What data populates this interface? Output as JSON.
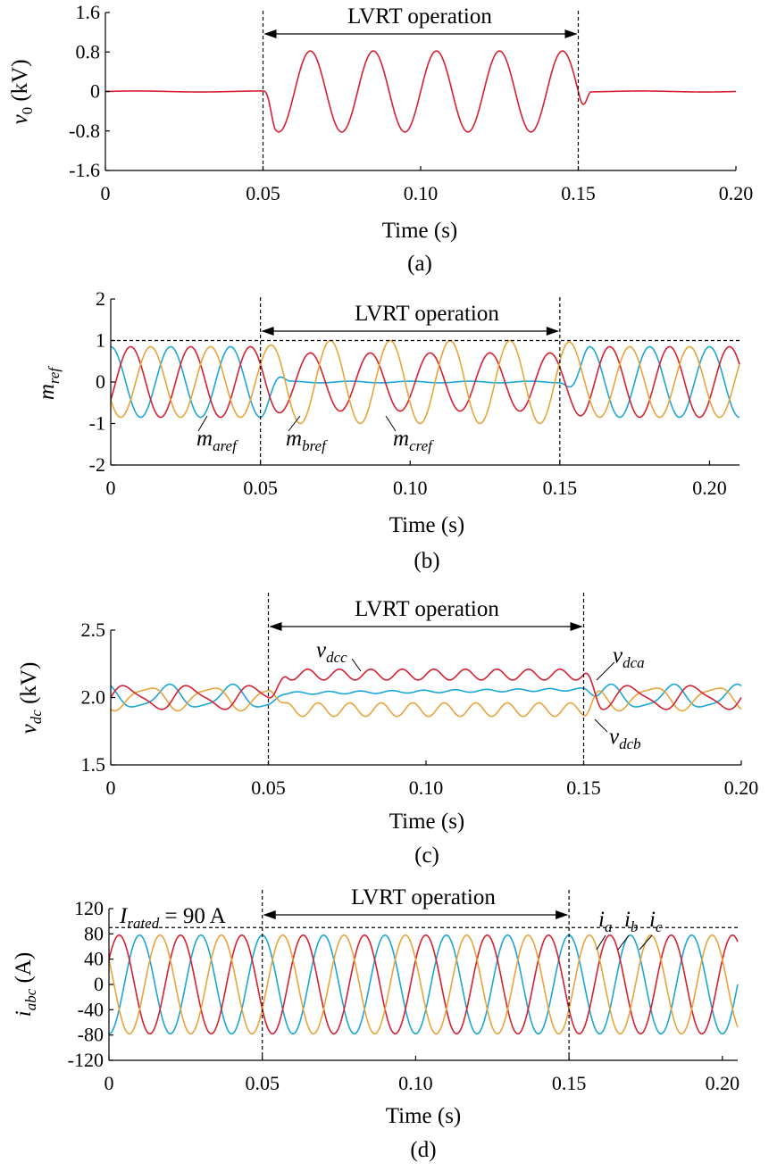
{
  "chart_data": [
    {
      "panel": "a",
      "type": "line",
      "caption": "(a)",
      "xlabel": "Time (s)",
      "ylabel": "v0 (kV)",
      "ylabel_main": "v",
      "ylabel_sub": "0",
      "ylabel_unit": " (kV)",
      "xlim": [
        0,
        0.2
      ],
      "ylim": [
        -1.6,
        1.6
      ],
      "x_ticks": [
        0,
        0.05,
        0.1,
        0.15,
        0.2
      ],
      "x_tick_labels": [
        "0",
        "0.05",
        "0.10",
        "0.15",
        "0.20"
      ],
      "y_ticks": [
        -1.6,
        -0.8,
        0,
        0.8,
        1.6
      ],
      "y_tick_labels": [
        "-1.6",
        "-0.8",
        "0",
        "0.8",
        "1.6"
      ],
      "event_lines_x": [
        0.05,
        0.15
      ],
      "annotation": "LVRT operation",
      "series": [
        {
          "color": "#d62031",
          "frequency_hz": 50,
          "amplitude": 0.82,
          "phase_deg": 180,
          "active_window": [
            0.05,
            0.15
          ],
          "baseline": 0
        }
      ]
    },
    {
      "panel": "b",
      "type": "line",
      "caption": "(b)",
      "xlabel": "Time (s)",
      "ylabel": "mref",
      "ylabel_main": "m",
      "ylabel_sub": "ref",
      "xlim": [
        0,
        0.21
      ],
      "ylim": [
        -2,
        2
      ],
      "x_ticks": [
        0,
        0.05,
        0.1,
        0.15,
        0.2
      ],
      "x_tick_labels": [
        "0",
        "0.05",
        "0.10",
        "0.15",
        "0.20"
      ],
      "y_ticks": [
        -2,
        -1,
        0,
        1,
        2
      ],
      "y_tick_labels": [
        "-2",
        "-1",
        "0",
        "1",
        "2"
      ],
      "event_lines_x": [
        0.05,
        0.15
      ],
      "reference_line_y": 1,
      "annotation": "LVRT operation",
      "series": [
        {
          "label_main": "m",
          "label_sub": "aref",
          "color": "#1aa6d6",
          "frequency_hz": 50,
          "amplitude_normal": 0.85,
          "amplitude_lvrt": 0.02,
          "phase_deg": 90
        },
        {
          "label_main": "m",
          "label_sub": "bref",
          "color": "#d62031",
          "frequency_hz": 50,
          "amplitude_normal": 0.85,
          "amplitude_lvrt": 0.7,
          "phase_deg": -30
        },
        {
          "label_main": "m",
          "label_sub": "cref",
          "color": "#e8a43a",
          "frequency_hz": 50,
          "amplitude_normal": 0.85,
          "amplitude_lvrt": 1.0,
          "phase_deg": 210
        }
      ]
    },
    {
      "panel": "c",
      "type": "line",
      "caption": "(c)",
      "xlabel": "Time (s)",
      "ylabel": "vdc (kV)",
      "ylabel_main": "v",
      "ylabel_sub": "dc",
      "ylabel_unit": " (kV)",
      "xlim": [
        0,
        0.2
      ],
      "ylim": [
        1.5,
        2.5
      ],
      "x_ticks": [
        0,
        0.05,
        0.1,
        0.15,
        0.2
      ],
      "x_tick_labels": [
        "0",
        "0.05",
        "0.10",
        "0.15",
        "0.20"
      ],
      "y_ticks": [
        1.5,
        2.0,
        2.5
      ],
      "y_tick_labels": [
        "1.5",
        "2.0",
        "2.5"
      ],
      "event_lines_x": [
        0.05,
        0.15
      ],
      "annotation": "LVRT operation",
      "series": [
        {
          "label_main": "v",
          "label_sub": "dcc",
          "color": "#d62031",
          "center_lvrt": 2.17,
          "ripple_lvrt": 0.04
        },
        {
          "label_main": "v",
          "label_sub": "dca",
          "color": "#1aa6d6",
          "center_lvrt": 2.03,
          "ripple_lvrt": 0.01
        },
        {
          "label_main": "v",
          "label_sub": "dcb",
          "color": "#e8a43a",
          "center_lvrt": 1.91,
          "ripple_lvrt": 0.05
        }
      ]
    },
    {
      "panel": "d",
      "type": "line",
      "caption": "(d)",
      "xlabel": "Time (s)",
      "ylabel": "iabc (A)",
      "ylabel_main": "i",
      "ylabel_sub": "abc",
      "ylabel_unit": " (A)",
      "xlim": [
        0,
        0.205
      ],
      "ylim": [
        -120,
        120
      ],
      "x_ticks": [
        0,
        0.05,
        0.1,
        0.15,
        0.2
      ],
      "x_tick_labels": [
        "0",
        "0.05",
        "0.10",
        "0.15",
        "0.20"
      ],
      "y_ticks": [
        -120,
        -80,
        -40,
        0,
        40,
        80,
        120
      ],
      "y_tick_labels": [
        "-120",
        "-80",
        "-40",
        "0",
        "40",
        "80",
        "120"
      ],
      "event_lines_x": [
        0.05,
        0.15
      ],
      "reference_line_y": 90,
      "reference_label_main": "I",
      "reference_label_sub": "rated",
      "reference_label_value": " = 90 A",
      "annotation": "LVRT operation",
      "series": [
        {
          "label_main": "i",
          "label_sub": "a",
          "color": "#1aa6d6",
          "frequency_hz": 50,
          "amplitude": 78,
          "phase_deg": 270
        },
        {
          "label_main": "i",
          "label_sub": "b",
          "color": "#d62031",
          "frequency_hz": 50,
          "amplitude": 78,
          "phase_deg": 30
        },
        {
          "label_main": "i",
          "label_sub": "c",
          "color": "#e8a43a",
          "frequency_hz": 50,
          "amplitude": 78,
          "phase_deg": 150
        }
      ]
    }
  ]
}
